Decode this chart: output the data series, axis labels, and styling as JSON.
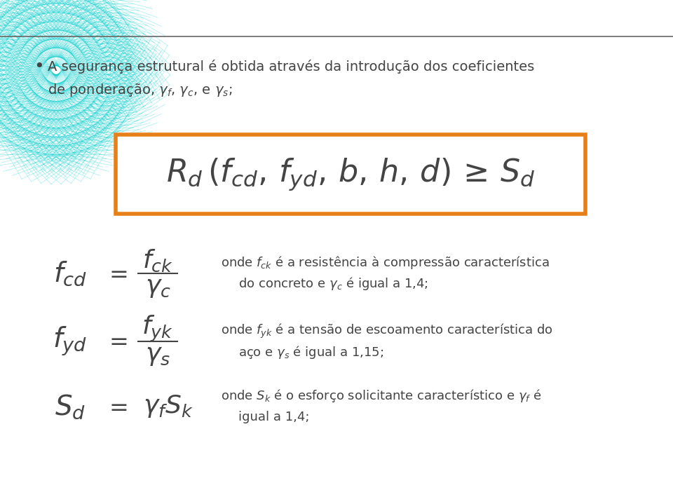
{
  "bg_color": "#ffffff",
  "header_line_color": "#666666",
  "bullet_text_line1": "A segurança estrutural é obtida através da introdução dos coeficientes",
  "bullet_text_line2": "de ponderação, $\\gamma_f$, $\\gamma_c$, e $\\gamma_s$;",
  "box_color": "#E8801A",
  "formula_color": "#444444",
  "eq1_desc_line1": "onde $f_{ck}$ é a resistência à compressão característica",
  "eq1_desc_line2": "do concreto e $\\gamma_c$ é igual a 1,4;",
  "eq2_desc_line1": "onde $f_{yk}$ é a tensão de escoamento característica do",
  "eq2_desc_line2": "aço e $\\gamma_s$ é igual a 1,15;",
  "eq3_desc_line1": "onde $S_k$ é o esforço solicitante característico e $\\gamma_f$ é",
  "eq3_desc_line2": "igual a 1,4;",
  "text_color": "#444444",
  "formula_fontsize": 32,
  "text_fontsize": 13,
  "eq_fontsize": 24,
  "cyan_color": "#00CCCC"
}
